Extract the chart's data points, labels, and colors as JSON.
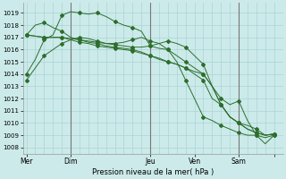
{
  "xlabel": "Pression niveau de la mer( hPa )",
  "ylim": [
    1007.5,
    1019.8
  ],
  "yticks": [
    1008,
    1009,
    1010,
    1011,
    1012,
    1013,
    1014,
    1015,
    1016,
    1017,
    1018,
    1019
  ],
  "bg_color": "#cceaea",
  "grid_color": "#aad4d4",
  "line_color": "#2d6e2d",
  "vline_color": "#777777",
  "series": [
    {
      "x": [
        0,
        0.5,
        1,
        1.5,
        2,
        2.5,
        3,
        3.5,
        4,
        4.5,
        5,
        5.5,
        6,
        6.5,
        7,
        7.5,
        8,
        8.5,
        9,
        9.5,
        10,
        10.5,
        11,
        11.5,
        12,
        12.5,
        13,
        13.5,
        14
      ],
      "y": [
        1014.0,
        1015.2,
        1016.8,
        1017.2,
        1018.8,
        1019.1,
        1019.0,
        1018.9,
        1019.0,
        1018.7,
        1018.3,
        1018.0,
        1017.8,
        1017.5,
        1016.3,
        1016.1,
        1016.0,
        1015.5,
        1015.0,
        1014.5,
        1014.0,
        1013.0,
        1011.5,
        1010.5,
        1010.0,
        1009.5,
        1009.2,
        1009.0,
        1009.1
      ]
    },
    {
      "x": [
        0,
        0.5,
        1,
        1.5,
        2,
        2.5,
        3,
        3.5,
        4,
        4.5,
        5,
        5.5,
        6,
        6.5,
        7,
        7.5,
        8,
        8.5,
        9,
        9.5,
        10,
        10.5,
        11,
        11.5,
        12,
        12.5,
        13,
        13.5,
        14
      ],
      "y": [
        1017.2,
        1018.0,
        1018.2,
        1017.8,
        1017.5,
        1017.0,
        1016.8,
        1016.6,
        1016.5,
        1016.3,
        1016.2,
        1016.1,
        1016.0,
        1015.8,
        1015.5,
        1015.2,
        1015.0,
        1014.8,
        1014.5,
        1014.2,
        1014.0,
        1013.0,
        1012.0,
        1011.5,
        1011.8,
        1010.2,
        1009.0,
        1008.3,
        1009.0
      ]
    },
    {
      "x": [
        0,
        0.5,
        1,
        1.5,
        2,
        2.5,
        3,
        3.5,
        4,
        4.5,
        5,
        5.5,
        6,
        6.5,
        7,
        7.5,
        8,
        8.5,
        9,
        9.5,
        10,
        10.5,
        11,
        11.5,
        12,
        12.5,
        13,
        13.5,
        14
      ],
      "y": [
        1017.2,
        1017.1,
        1017.0,
        1017.0,
        1017.0,
        1016.9,
        1016.8,
        1016.7,
        1016.6,
        1016.5,
        1016.4,
        1016.3,
        1016.2,
        1016.2,
        1016.3,
        1016.5,
        1016.7,
        1016.5,
        1016.2,
        1015.5,
        1014.8,
        1013.0,
        1011.5,
        1010.5,
        1010.0,
        1009.5,
        1009.2,
        1009.0,
        1009.1
      ]
    },
    {
      "x": [
        0,
        0.5,
        1,
        1.5,
        2,
        2.5,
        3,
        3.5,
        4,
        4.5,
        5,
        5.5,
        6,
        6.5,
        7,
        7.5,
        8,
        8.5,
        9,
        9.5,
        10,
        10.5,
        11,
        11.5,
        12,
        12.5,
        13,
        13.5,
        14
      ],
      "y": [
        1017.2,
        1017.1,
        1017.0,
        1017.0,
        1017.0,
        1016.8,
        1016.6,
        1016.5,
        1016.3,
        1016.2,
        1016.1,
        1016.0,
        1015.9,
        1015.7,
        1015.5,
        1015.3,
        1015.0,
        1014.8,
        1014.5,
        1014.0,
        1013.5,
        1012.0,
        1011.5,
        1010.5,
        1010.0,
        1009.8,
        1009.5,
        1009.0,
        1009.1
      ]
    },
    {
      "x": [
        0,
        0.5,
        1,
        1.5,
        2,
        2.5,
        3,
        3.5,
        4,
        4.5,
        5,
        5.5,
        6,
        6.5,
        7,
        7.5,
        8,
        8.5,
        9,
        9.5,
        10,
        10.5,
        11,
        11.5,
        12,
        12.5,
        13,
        13.5,
        14
      ],
      "y": [
        1013.5,
        1014.5,
        1015.5,
        1016.0,
        1016.5,
        1016.8,
        1017.0,
        1016.9,
        1016.7,
        1016.5,
        1016.5,
        1016.6,
        1016.8,
        1017.0,
        1016.7,
        1016.5,
        1016.0,
        1015.0,
        1013.5,
        1012.0,
        1010.5,
        1010.2,
        1009.8,
        1009.5,
        1009.2,
        1009.0,
        1009.0,
        1008.8,
        1009.0
      ]
    }
  ],
  "xlim": [
    -0.2,
    14.5
  ],
  "vlines": [
    2.5,
    7.0,
    12.0
  ],
  "xtick_positions": [
    0,
    2.5,
    7.0,
    9.5,
    12.0,
    14.0
  ],
  "xtick_labels": [
    "Mer",
    "Dim",
    "Jeu",
    "Ven",
    "Sam",
    ""
  ]
}
